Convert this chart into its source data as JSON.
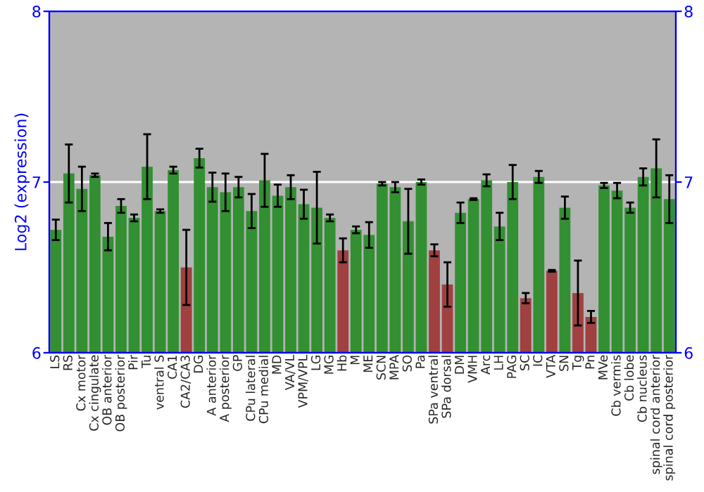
{
  "chart_data": {
    "type": "bar",
    "ylabel": "Log2 (expression)",
    "categories": [
      "LS",
      "RS",
      "Cx motor",
      "Cx cingulate",
      "OB anterior",
      "OB posterior",
      "Pir",
      "Tu",
      "ventral S",
      "CA1",
      "CA2/CA3",
      "DG",
      "A anterior",
      "A posterior",
      "GP",
      "CPu lateral",
      "CPu medial",
      "MD",
      "VA/VL",
      "VPM/VPL",
      "LG",
      "MG",
      "Hb",
      "M",
      "ME",
      "SCN",
      "MPA",
      "SO",
      "Pa",
      "SPa ventral",
      "SPa dorsal",
      "DM",
      "VMH",
      "Arc",
      "LH",
      "PAG",
      "SC",
      "IC",
      "VTA",
      "SN",
      "Tg",
      "Pn",
      "MVe",
      "Cb vermis",
      "Cb lobe",
      "Cb nucleus",
      "spinal cord anterior",
      "spinal cord posterior"
    ],
    "values": [
      6.72,
      7.05,
      6.96,
      7.04,
      6.68,
      6.86,
      6.79,
      7.09,
      6.83,
      7.07,
      6.5,
      7.14,
      6.97,
      6.94,
      6.97,
      6.83,
      7.01,
      6.92,
      6.97,
      6.87,
      6.85,
      6.79,
      6.6,
      6.72,
      6.69,
      6.99,
      6.97,
      6.77,
      7.0,
      6.6,
      6.4,
      6.82,
      6.9,
      7.01,
      6.74,
      7.0,
      6.32,
      7.03,
      6.48,
      6.85,
      6.35,
      6.21,
      6.98,
      6.95,
      6.85,
      7.03,
      7.08,
      6.9
    ],
    "errors": [
      0.06,
      0.17,
      0.13,
      0.01,
      0.08,
      0.04,
      0.02,
      0.19,
      0.01,
      0.02,
      0.22,
      0.055,
      0.085,
      0.11,
      0.06,
      0.1,
      0.155,
      0.065,
      0.07,
      0.085,
      0.21,
      0.02,
      0.07,
      0.02,
      0.075,
      0.01,
      0.03,
      0.19,
      0.015,
      0.035,
      0.13,
      0.06,
      0.005,
      0.035,
      0.08,
      0.1,
      0.03,
      0.035,
      0.005,
      0.065,
      0.19,
      0.035,
      0.015,
      0.045,
      0.03,
      0.05,
      0.17,
      0.14
    ],
    "colors": [
      "#22a022",
      "#22a022",
      "#22a022",
      "#22a022",
      "#22a022",
      "#22a022",
      "#22a022",
      "#22a022",
      "#22a022",
      "#22a022",
      "#b03030",
      "#22a022",
      "#22a022",
      "#22a022",
      "#22a022",
      "#22a022",
      "#22a022",
      "#22a022",
      "#22a022",
      "#22a022",
      "#22a022",
      "#22a022",
      "#b03030",
      "#22a022",
      "#22a022",
      "#22a022",
      "#22a022",
      "#22a022",
      "#22a022",
      "#b03030",
      "#b03030",
      "#22a022",
      "#22a022",
      "#22a022",
      "#22a022",
      "#22a022",
      "#b03030",
      "#22a022",
      "#b03030",
      "#22a022",
      "#b03030",
      "#b03030",
      "#22a022",
      "#22a022",
      "#22a022",
      "#22a022",
      "#22a022",
      "#22a022"
    ],
    "ylim": [
      6,
      8
    ],
    "yticks": [
      6,
      7,
      8
    ],
    "y2lim": [
      6,
      8
    ],
    "y2ticks": [
      6,
      7,
      8
    ],
    "grid": "y"
  }
}
